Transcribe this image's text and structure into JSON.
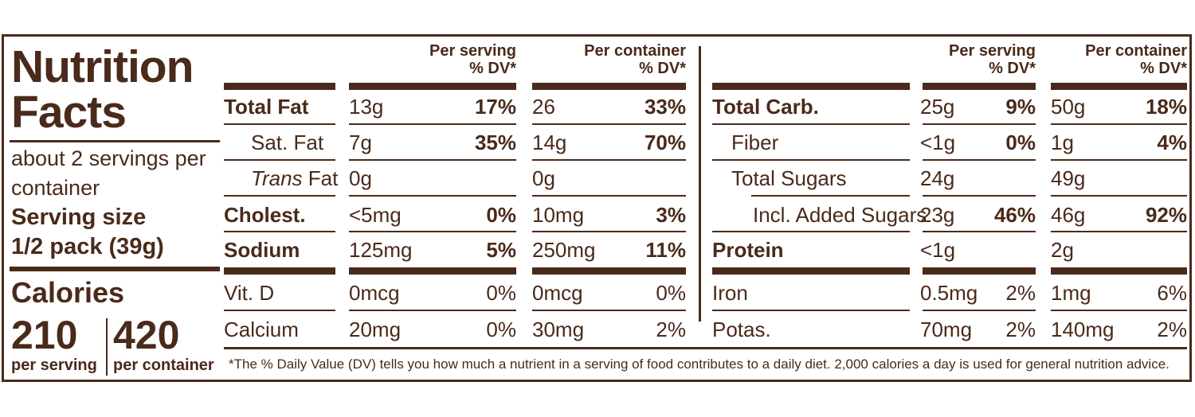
{
  "label": {
    "title_line1": "Nutrition",
    "title_line2": "Facts",
    "servings_line1": "about 2 servings per",
    "servings_line2": "container",
    "serving_size_label": "Serving size",
    "serving_size_value": "1/2 pack (39g)",
    "calories_label": "Calories",
    "calories_per_serving": "210",
    "calories_per_container": "420",
    "per_serving_label": "per serving",
    "per_container_label": "per container",
    "footnote": "*The % Daily Value (DV) tells you how much a nutrient in a serving of food contributes to a daily diet. 2,000 calories a day is used for general nutrition advice."
  },
  "headers": {
    "per_serving": "Per serving",
    "per_container": "Per container",
    "dv": "% DV*"
  },
  "left_rows": [
    {
      "name": "Total Fat",
      "s_amt": "13g",
      "s_dv": "17%",
      "c_amt": "26",
      "c_dv": "33%"
    },
    {
      "name": "Sat. Fat",
      "s_amt": "7g",
      "s_dv": "35%",
      "c_amt": "14g",
      "c_dv": "70%"
    },
    {
      "name_italic": "Trans",
      "name": " Fat",
      "s_amt": "0g",
      "s_dv": "",
      "c_amt": "0g",
      "c_dv": ""
    },
    {
      "name": "Cholest.",
      "s_amt": "<5mg",
      "s_dv": "0%",
      "c_amt": "10mg",
      "c_dv": "3%"
    },
    {
      "name": "Sodium",
      "s_amt": "125mg",
      "s_dv": "5%",
      "c_amt": "250mg",
      "c_dv": "11%"
    },
    {
      "name": "Vit. D",
      "s_amt": "0mcg",
      "s_dv": "0%",
      "c_amt": "0mcg",
      "c_dv": "0%"
    },
    {
      "name": "Calcium",
      "s_amt": "20mg",
      "s_dv": "0%",
      "c_amt": "30mg",
      "c_dv": "2%"
    }
  ],
  "right_rows": [
    {
      "name": "Total Carb.",
      "s_amt": "25g",
      "s_dv": "9%",
      "c_amt": "50g",
      "c_dv": "18%"
    },
    {
      "name": "Fiber",
      "s_amt": "<1g",
      "s_dv": "0%",
      "c_amt": "1g",
      "c_dv": "4%"
    },
    {
      "name": "Total Sugars",
      "s_amt": "24g",
      "s_dv": "",
      "c_amt": "49g",
      "c_dv": ""
    },
    {
      "name": "Incl. Added Sugars",
      "s_amt": "23g",
      "s_dv": "46%",
      "c_amt": "46g",
      "c_dv": "92%"
    },
    {
      "name": "Protein",
      "s_amt": "<1g",
      "s_dv": "",
      "c_amt": "2g",
      "c_dv": ""
    },
    {
      "name": "Iron",
      "s_amt": "0.5mg",
      "s_dv": "2%",
      "c_amt": "1mg",
      "c_dv": "6%"
    },
    {
      "name": "Potas.",
      "s_amt": "70mg",
      "s_dv": "2%",
      "c_amt": "140mg",
      "c_dv": "2%"
    }
  ]
}
